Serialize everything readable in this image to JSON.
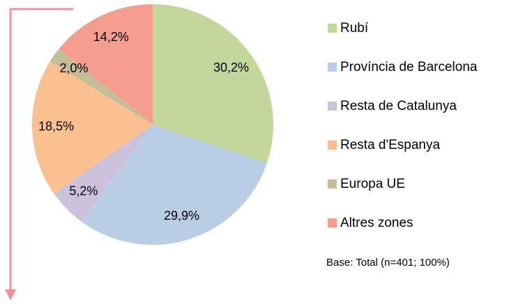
{
  "chart_data": {
    "type": "pie",
    "categories": [
      "Rubí",
      "Província de Barcelona",
      "Resta de Catalunya",
      "Resta d'Espanya",
      "Europa UE",
      "Altres zones"
    ],
    "values": [
      30.2,
      29.9,
      5.2,
      18.5,
      2.0,
      14.2
    ],
    "value_labels": [
      "30,2%",
      "29,9%",
      "5,2%",
      "18,5%",
      "2,0%",
      "14,2%"
    ],
    "colors": [
      "#c3d69b",
      "#b9cde5",
      "#ccc1da",
      "#fac090",
      "#c4bd97",
      "#f59d8e"
    ],
    "note": "Base: Total (n=401; 100%)"
  }
}
